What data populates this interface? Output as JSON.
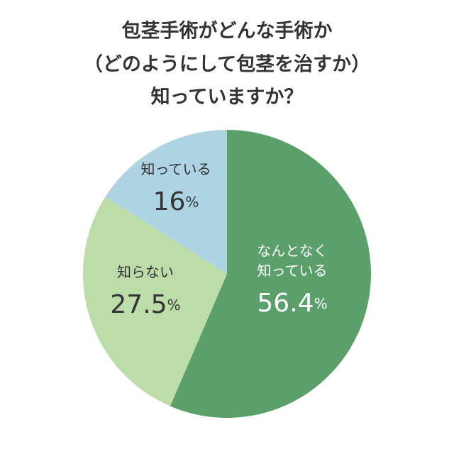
{
  "chart_data": {
    "type": "pie",
    "title": [
      "包茎手術がどんな手術か",
      "（どのようにして包茎を治すか）",
      "知っていますか？"
    ],
    "categories": [
      [
        "なんとなく",
        "知っている"
      ],
      [
        "知らない"
      ],
      [
        "知っている"
      ]
    ],
    "values": [
      56.4,
      27.5,
      16
    ],
    "value_labels": [
      "56.4%",
      "27.5%",
      "16%"
    ],
    "colors": [
      "#5ba06b",
      "#bcdca9",
      "#aed4e4"
    ]
  }
}
